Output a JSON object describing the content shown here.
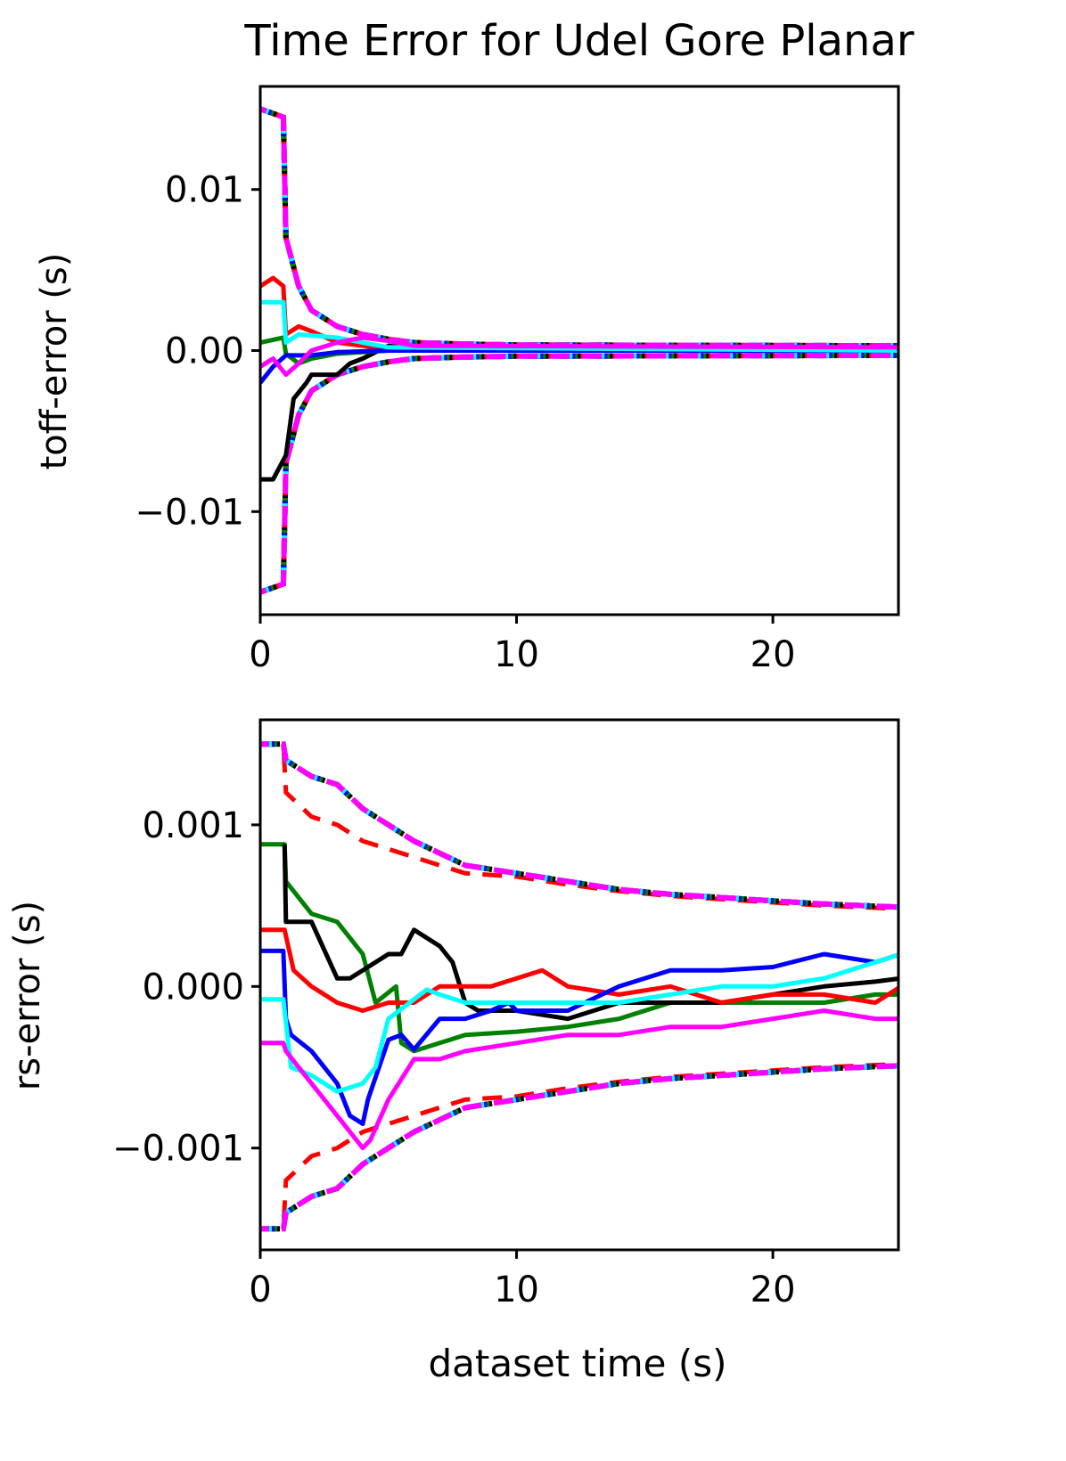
{
  "chart_data": {
    "title": "Time Error for Udel Gore Planar",
    "xlabel": "dataset time (s)",
    "colors": {
      "black": "#000000",
      "red": "#ff0000",
      "green": "#008000",
      "blue": "#0000ff",
      "cyan": "#00ffff",
      "magenta": "#ff00ff"
    },
    "panels": [
      {
        "type": "line",
        "ylabel": "toff-error (s)",
        "xlim": [
          0,
          24.9
        ],
        "ylim": [
          -0.0164,
          0.0164
        ],
        "xticks": [
          0,
          10,
          20
        ],
        "xtick_labels": [
          "0",
          "10",
          "20"
        ],
        "yticks": [
          0.01,
          0.0,
          -0.01
        ],
        "ytick_labels": [
          "0.01",
          "0.00",
          "−0.01"
        ],
        "series": [
          {
            "color": "black",
            "x": [
              0,
              0.5,
              1,
              1.3,
              1.8,
              2,
              3,
              3.5,
              4,
              5,
              6,
              25
            ],
            "y": [
              -0.008,
              -0.008,
              -0.0065,
              -0.003,
              -0.002,
              -0.0015,
              -0.0015,
              -0.0008,
              -0.0005,
              0.0003,
              0.0001,
              0
            ]
          },
          {
            "color": "red",
            "x": [
              0,
              0.5,
              0.9,
              1,
              1.5,
              2,
              3,
              4,
              5,
              25
            ],
            "y": [
              0.004,
              0.0045,
              0.004,
              0.001,
              0.0015,
              0.0012,
              0.0005,
              0.0003,
              0,
              0
            ]
          },
          {
            "color": "green",
            "x": [
              0,
              0.9,
              1,
              1.5,
              2,
              3,
              5,
              25
            ],
            "y": [
              0.0005,
              0.0008,
              -0.0002,
              -0.0008,
              -0.0005,
              -0.0002,
              0,
              0
            ]
          },
          {
            "color": "blue",
            "x": [
              0,
              0.5,
              1,
              2,
              3,
              5,
              25
            ],
            "y": [
              -0.002,
              -0.001,
              -0.0003,
              -0.0003,
              -0.0001,
              0,
              0
            ]
          },
          {
            "color": "cyan",
            "x": [
              0,
              0.9,
              1,
              1.5,
              3,
              4,
              5,
              25
            ],
            "y": [
              0.003,
              0.003,
              0.0005,
              0.001,
              0.0008,
              0.0005,
              0.0002,
              0
            ]
          },
          {
            "color": "magenta",
            "x": [
              0,
              0.5,
              1,
              1.5,
              2,
              3,
              4,
              5,
              6,
              25
            ],
            "y": [
              -0.001,
              -0.0005,
              -0.0015,
              -0.0008,
              0,
              0.0005,
              0.0008,
              0.0006,
              0.0003,
              0.0002
            ]
          }
        ],
        "bounds": {
          "x": [
            0,
            0.9,
            1,
            1.5,
            2,
            3,
            4,
            5,
            6,
            8,
            10,
            25
          ],
          "upper": [
            0.015,
            0.0145,
            0.007,
            0.004,
            0.0025,
            0.0015,
            0.001,
            0.0007,
            0.0005,
            0.0004,
            0.00035,
            0.0003
          ],
          "lower": [
            -0.015,
            -0.0145,
            -0.007,
            -0.004,
            -0.0025,
            -0.0015,
            -0.001,
            -0.0007,
            -0.0005,
            -0.0004,
            -0.00035,
            -0.0003
          ]
        }
      },
      {
        "type": "line",
        "ylabel": "rs-error (s)",
        "xlim": [
          0,
          24.9
        ],
        "ylim": [
          -0.00163,
          0.00165
        ],
        "xticks": [
          0,
          10,
          20
        ],
        "xtick_labels": [
          "0",
          "10",
          "20"
        ],
        "yticks": [
          0.001,
          0.0,
          -0.001
        ],
        "ytick_labels": [
          "0.001",
          "0.000",
          "−0.001"
        ],
        "series": [
          {
            "color": "green",
            "x": [
              0,
              0.95,
              1,
              2,
              3,
              4,
              4.5,
              5.3,
              5.5,
              6,
              7,
              8,
              10,
              12,
              14,
              16,
              18,
              20,
              22,
              24,
              25
            ],
            "y": [
              0.00088,
              0.00088,
              0.00065,
              0.00045,
              0.0004,
              0.0002,
              -0.0001,
              0,
              -0.00035,
              -0.0004,
              -0.00035,
              -0.0003,
              -0.00028,
              -0.00025,
              -0.0002,
              -0.0001,
              -0.0001,
              -0.0001,
              -0.0001,
              -5e-05,
              -5e-05
            ]
          },
          {
            "color": "black",
            "x": [
              0.95,
              1,
              2,
              3,
              3.5,
              4,
              4.5,
              5,
              5.5,
              6,
              7,
              7.5,
              8,
              8.5,
              10,
              12,
              14,
              16,
              18,
              20,
              22,
              24,
              25
            ],
            "y": [
              0.00088,
              0.0004,
              0.0004,
              5e-05,
              5e-05,
              0.0001,
              0.00015,
              0.0002,
              0.0002,
              0.00035,
              0.00025,
              0.00015,
              -0.0001,
              -0.00015,
              -0.00015,
              -0.0002,
              -0.0001,
              -0.0001,
              -0.0001,
              -5e-05,
              0,
              3e-05,
              5e-05
            ]
          },
          {
            "color": "red",
            "x": [
              0,
              0.95,
              1.3,
              2,
              3,
              4,
              5,
              6,
              7,
              8,
              9,
              10,
              11,
              12,
              14,
              16,
              18,
              20,
              22,
              24,
              25
            ],
            "y": [
              0.00035,
              0.00035,
              0.0001,
              0,
              -0.0001,
              -0.00015,
              -0.0001,
              -0.0001,
              0,
              0,
              0,
              5e-05,
              0.0001,
              0,
              -5e-05,
              0,
              -0.0001,
              -5e-05,
              -5e-05,
              -0.0001,
              0
            ]
          },
          {
            "color": "blue",
            "x": [
              0,
              0.9,
              1,
              1.2,
              2,
              3,
              3.5,
              4,
              4.2,
              5,
              5.5,
              6,
              7,
              8,
              9,
              9.7,
              10,
              12,
              14,
              16,
              18,
              20,
              22,
              24,
              25
            ],
            "y": [
              0.00022,
              0.00022,
              -0.0002,
              -0.0003,
              -0.0004,
              -0.0006,
              -0.0008,
              -0.00085,
              -0.0007,
              -0.00033,
              -0.0003,
              -0.00039,
              -0.0002,
              -0.0002,
              -0.00015,
              -0.0001,
              -0.00015,
              -0.00015,
              0,
              0.0001,
              0.0001,
              0.00012,
              0.0002,
              0.00015,
              0.0002
            ]
          },
          {
            "color": "cyan",
            "x": [
              0,
              0.9,
              1.2,
              2,
              3,
              4,
              4.5,
              5,
              6.5,
              7,
              8,
              10,
              12,
              14,
              16,
              18,
              20,
              22,
              24,
              25
            ],
            "y": [
              -8e-05,
              -8e-05,
              -0.0005,
              -0.00055,
              -0.00065,
              -0.0006,
              -0.0005,
              -0.0002,
              -2e-05,
              -5e-05,
              -0.0001,
              -0.0001,
              -0.0001,
              -0.0001,
              -5e-05,
              0,
              0,
              5e-05,
              0.00015,
              0.0002
            ]
          },
          {
            "color": "magenta",
            "x": [
              0,
              0.9,
              1,
              1.5,
              2,
              3,
              4,
              4.3,
              5,
              6,
              7,
              8,
              10,
              12,
              14,
              16,
              18,
              20,
              22,
              24,
              25
            ],
            "y": [
              -0.00035,
              -0.00035,
              -0.0004,
              -0.0005,
              -0.0006,
              -0.0008,
              -0.001,
              -0.00095,
              -0.0007,
              -0.00045,
              -0.00045,
              -0.0004,
              -0.00035,
              -0.0003,
              -0.0003,
              -0.00025,
              -0.00025,
              -0.0002,
              -0.00015,
              -0.0002,
              -0.0002
            ]
          }
        ],
        "bounds": {
          "x": [
            0,
            0.9,
            1,
            2,
            3,
            4,
            5,
            6,
            8,
            10,
            12,
            14,
            16,
            18,
            20,
            22,
            25
          ],
          "upper": [
            0.0015,
            0.0015,
            0.0014,
            0.0013,
            0.00125,
            0.0011,
            0.001,
            0.0009,
            0.00075,
            0.0007,
            0.00065,
            0.0006,
            0.00057,
            0.00055,
            0.00053,
            0.00051,
            0.00049
          ],
          "lower": [
            -0.0015,
            -0.0015,
            -0.0014,
            -0.0013,
            -0.00125,
            -0.0011,
            -0.001,
            -0.0009,
            -0.00075,
            -0.0007,
            -0.00065,
            -0.0006,
            -0.00057,
            -0.00055,
            -0.00053,
            -0.00051,
            -0.00049
          ],
          "red_upper": [
            0.0015,
            0.0015,
            0.0012,
            0.00105,
            0.001,
            0.0009,
            0.00085,
            0.0008,
            0.0007,
            0.00068,
            0.00063,
            0.00059,
            0.00056,
            0.00054,
            0.00052,
            0.0005,
            0.00048
          ],
          "red_lower": [
            -0.0015,
            -0.0015,
            -0.0012,
            -0.00105,
            -0.001,
            -0.0009,
            -0.00085,
            -0.0008,
            -0.0007,
            -0.00068,
            -0.00063,
            -0.00059,
            -0.00056,
            -0.00054,
            -0.00052,
            -0.0005,
            -0.00048
          ]
        }
      }
    ]
  }
}
